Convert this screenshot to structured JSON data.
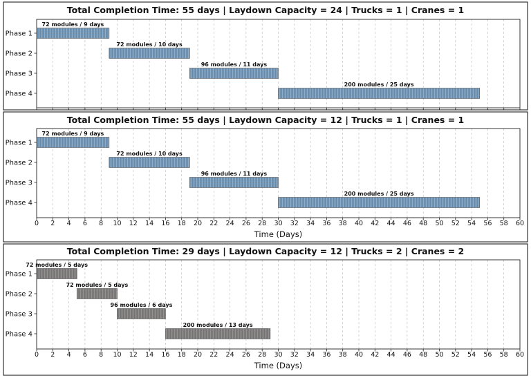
{
  "chart_data": [
    {
      "type": "bar",
      "orientation": "horizontal-gantt",
      "title": "Total Completion Time: 55 days | Laydown Capacity = 24 | Trucks = 1 | Cranes = 1",
      "xlabel": "",
      "show_xtick_labels": false,
      "xlim": [
        0,
        60
      ],
      "grid": true,
      "bar_color": "#6f95b8",
      "categories": [
        "Phase 1",
        "Phase 2",
        "Phase 3",
        "Phase 4"
      ],
      "bars": [
        {
          "start": 0,
          "end": 9,
          "label": "72 modules / 9 days"
        },
        {
          "start": 9,
          "end": 19,
          "label": "72 modules / 10 days"
        },
        {
          "start": 19,
          "end": 30,
          "label": "96 modules / 11 days"
        },
        {
          "start": 30,
          "end": 55,
          "label": "200 modules / 25 days"
        }
      ]
    },
    {
      "type": "bar",
      "orientation": "horizontal-gantt",
      "title": "Total Completion Time: 55 days | Laydown Capacity = 12 | Trucks = 1 | Cranes = 1",
      "xlabel": "Time (Days)",
      "show_xtick_labels": true,
      "xlim": [
        0,
        60
      ],
      "grid": true,
      "bar_color": "#6f95b8",
      "categories": [
        "Phase 1",
        "Phase 2",
        "Phase 3",
        "Phase 4"
      ],
      "bars": [
        {
          "start": 0,
          "end": 9,
          "label": "72 modules / 9 days"
        },
        {
          "start": 9,
          "end": 19,
          "label": "72 modules / 10 days"
        },
        {
          "start": 19,
          "end": 30,
          "label": "96 modules / 11 days"
        },
        {
          "start": 30,
          "end": 55,
          "label": "200 modules / 25 days"
        }
      ]
    },
    {
      "type": "bar",
      "orientation": "horizontal-gantt",
      "title": "Total Completion Time: 29 days | Laydown Capacity = 12 | Trucks = 2 | Cranes = 2",
      "xlabel": "Time (Days)",
      "show_xtick_labels": true,
      "xlim": [
        0,
        60
      ],
      "grid": true,
      "bar_color": "#7d7d7d",
      "categories": [
        "Phase 1",
        "Phase 2",
        "Phase 3",
        "Phase 4"
      ],
      "bars": [
        {
          "start": 0,
          "end": 5,
          "label": "72 modules / 5 days"
        },
        {
          "start": 5,
          "end": 10,
          "label": "72 modules / 5 days"
        },
        {
          "start": 10,
          "end": 16,
          "label": "96 modules / 6 days"
        },
        {
          "start": 16,
          "end": 29,
          "label": "200 modules / 13 days"
        }
      ]
    }
  ],
  "x_ticks": [
    0,
    2,
    4,
    6,
    8,
    10,
    12,
    14,
    16,
    18,
    20,
    22,
    24,
    26,
    28,
    30,
    32,
    34,
    36,
    38,
    40,
    42,
    44,
    46,
    48,
    50,
    52,
    54,
    56,
    58,
    60
  ]
}
